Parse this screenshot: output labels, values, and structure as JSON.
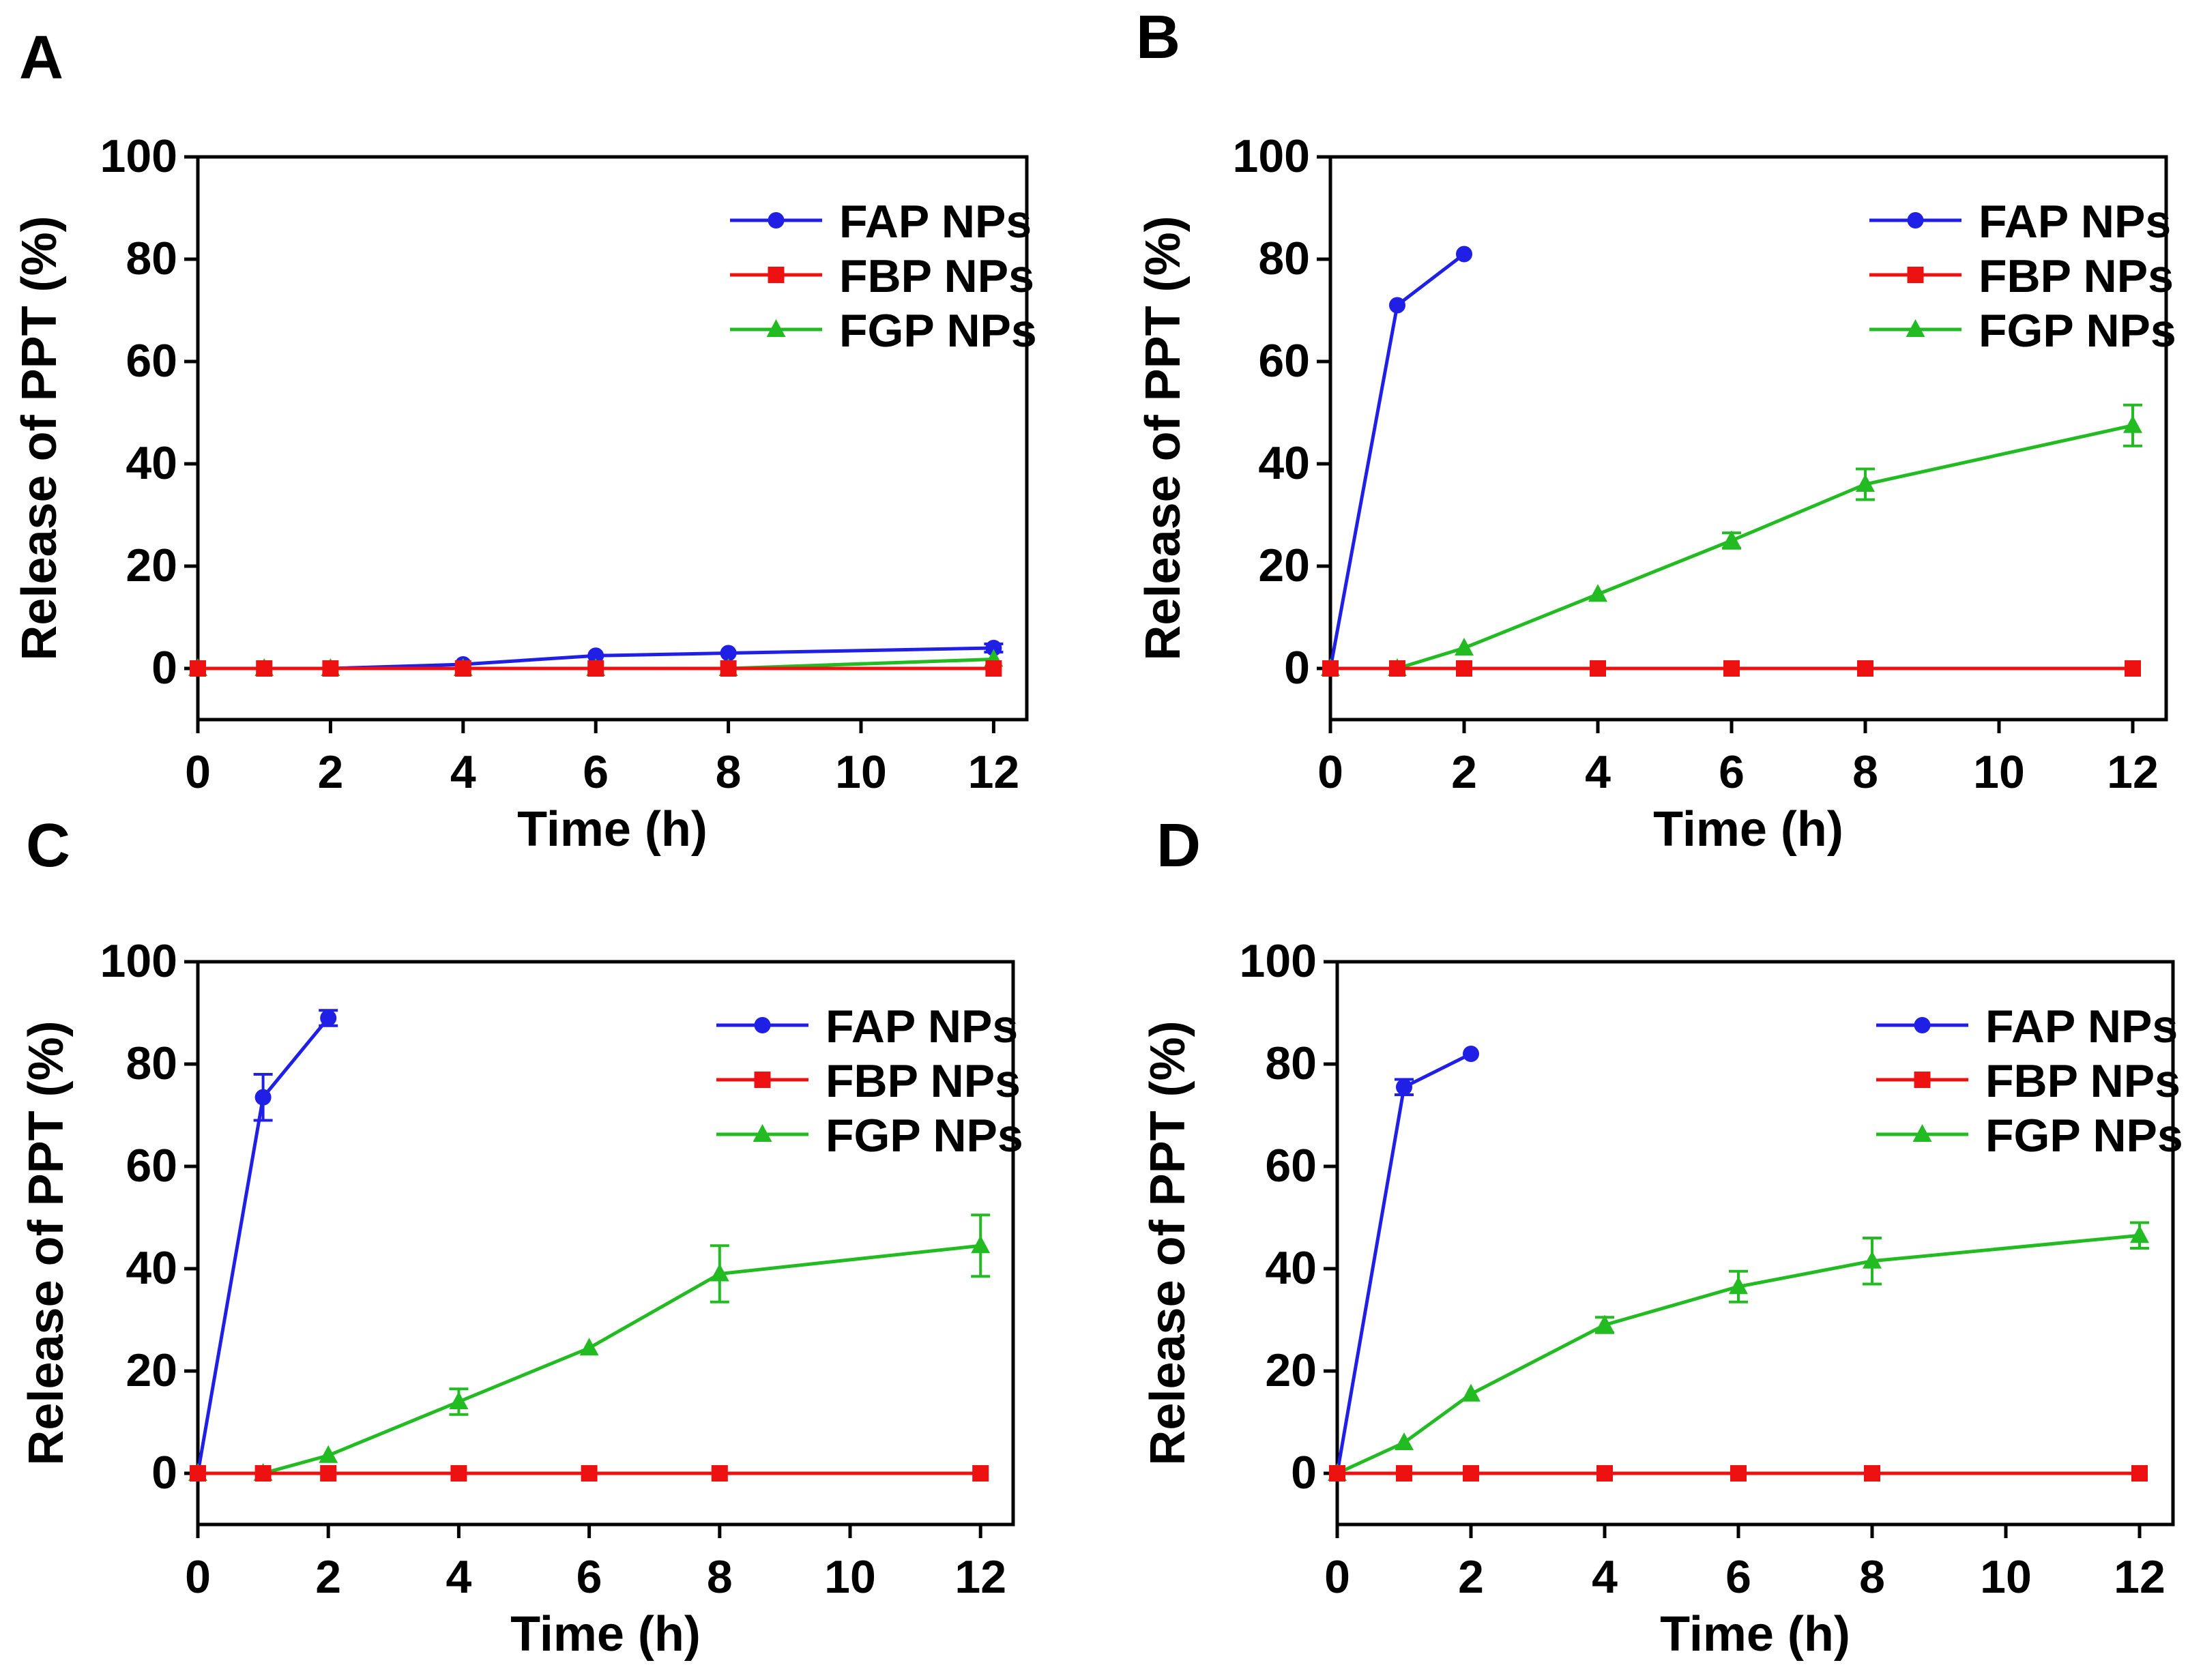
{
  "figure_colors": {
    "FAP NPs": "#1f1fe6",
    "FBP NPs": "#ee1111",
    "FGP NPs": "#22bb22"
  },
  "chart_data": [
    {
      "panel": "A",
      "type": "line",
      "xlabel": "Time (h)",
      "ylabel": "Release of PPT (%)",
      "xlim": [
        0,
        12.5
      ],
      "ylim": [
        -10,
        100
      ],
      "xticks": [
        0,
        2,
        4,
        6,
        8,
        10,
        12
      ],
      "yticks": [
        0,
        20,
        40,
        60,
        80,
        100
      ],
      "legend_position": "top-right",
      "series": [
        {
          "name": "FAP NPs",
          "marker": "circle",
          "x": [
            0,
            1,
            2,
            4,
            6,
            8,
            12
          ],
          "y": [
            0,
            0,
            0,
            0.8,
            2.5,
            3,
            4
          ],
          "err": [
            0,
            0,
            0,
            0,
            0,
            0,
            0.8
          ]
        },
        {
          "name": "FBP NPs",
          "marker": "square",
          "x": [
            0,
            1,
            2,
            4,
            6,
            8,
            12
          ],
          "y": [
            0,
            0,
            0,
            0,
            0,
            0,
            0
          ],
          "err": [
            0,
            0,
            0,
            0,
            0,
            0,
            0
          ]
        },
        {
          "name": "FGP NPs",
          "marker": "triangle",
          "x": [
            0,
            1,
            2,
            4,
            6,
            8,
            12
          ],
          "y": [
            0,
            0,
            0,
            0,
            0,
            0,
            1.8
          ],
          "err": [
            0,
            0,
            0,
            0,
            0,
            0,
            0
          ]
        }
      ]
    },
    {
      "panel": "B",
      "type": "line",
      "xlabel": "Time (h)",
      "ylabel": "Release of PPT (%)",
      "xlim": [
        0,
        12.5
      ],
      "ylim": [
        -10,
        100
      ],
      "xticks": [
        0,
        2,
        4,
        6,
        8,
        10,
        12
      ],
      "yticks": [
        0,
        20,
        40,
        60,
        80,
        100
      ],
      "legend_position": "top-right",
      "series": [
        {
          "name": "FAP NPs",
          "marker": "circle",
          "x": [
            0,
            1,
            2
          ],
          "y": [
            0,
            71,
            81
          ],
          "err": [
            0,
            0,
            0
          ]
        },
        {
          "name": "FBP NPs",
          "marker": "square",
          "x": [
            0,
            1,
            2,
            4,
            6,
            8,
            12
          ],
          "y": [
            0,
            0,
            0,
            0,
            0,
            0,
            0
          ],
          "err": [
            0,
            0,
            0,
            0,
            0,
            0,
            0
          ]
        },
        {
          "name": "FGP NPs",
          "marker": "triangle",
          "x": [
            0,
            1,
            2,
            4,
            6,
            8,
            12
          ],
          "y": [
            0,
            0,
            4,
            14.5,
            25,
            36,
            47.5
          ],
          "err": [
            0,
            0,
            0,
            0,
            1.5,
            3,
            4
          ]
        }
      ]
    },
    {
      "panel": "C",
      "type": "line",
      "xlabel": "Time (h)",
      "ylabel": "Release of PPT (%)",
      "xlim": [
        0,
        12.5
      ],
      "ylim": [
        -10,
        100
      ],
      "xticks": [
        0,
        2,
        4,
        6,
        8,
        10,
        12
      ],
      "yticks": [
        0,
        20,
        40,
        60,
        80,
        100
      ],
      "legend_position": "top-right",
      "series": [
        {
          "name": "FAP NPs",
          "marker": "circle",
          "x": [
            0,
            1,
            2
          ],
          "y": [
            0,
            73.5,
            89
          ],
          "err": [
            0,
            4.5,
            1.5
          ]
        },
        {
          "name": "FBP NPs",
          "marker": "square",
          "x": [
            0,
            1,
            2,
            4,
            6,
            8,
            12
          ],
          "y": [
            0,
            0,
            0,
            0,
            0,
            0,
            0
          ],
          "err": [
            0,
            0,
            0,
            0,
            0,
            0,
            0
          ]
        },
        {
          "name": "FGP NPs",
          "marker": "triangle",
          "x": [
            0,
            1,
            2,
            4,
            6,
            8,
            12
          ],
          "y": [
            0,
            0,
            3.5,
            14,
            24.5,
            39,
            44.5
          ],
          "err": [
            0,
            0,
            0,
            2.5,
            0,
            5.5,
            6
          ]
        }
      ]
    },
    {
      "panel": "D",
      "type": "line",
      "xlabel": "Time (h)",
      "ylabel": "Release of PPT (%)",
      "xlim": [
        0,
        12.5
      ],
      "ylim": [
        -10,
        100
      ],
      "xticks": [
        0,
        2,
        4,
        6,
        8,
        10,
        12
      ],
      "yticks": [
        0,
        20,
        40,
        60,
        80,
        100
      ],
      "legend_position": "top-right",
      "series": [
        {
          "name": "FAP NPs",
          "marker": "circle",
          "x": [
            0,
            1,
            2
          ],
          "y": [
            0,
            75.5,
            82
          ],
          "err": [
            0,
            1.5,
            0
          ]
        },
        {
          "name": "FBP NPs",
          "marker": "square",
          "x": [
            0,
            1,
            2,
            4,
            6,
            8,
            12
          ],
          "y": [
            0,
            0,
            0,
            0,
            0,
            0,
            0
          ],
          "err": [
            0,
            0,
            0,
            0,
            0,
            0,
            0
          ]
        },
        {
          "name": "FGP NPs",
          "marker": "triangle",
          "x": [
            0,
            1,
            2,
            4,
            6,
            8,
            12
          ],
          "y": [
            0,
            6,
            15.5,
            29,
            36.5,
            41.5,
            46.5
          ],
          "err": [
            0,
            0,
            0,
            1.5,
            3,
            4.5,
            2.5
          ]
        }
      ]
    }
  ]
}
